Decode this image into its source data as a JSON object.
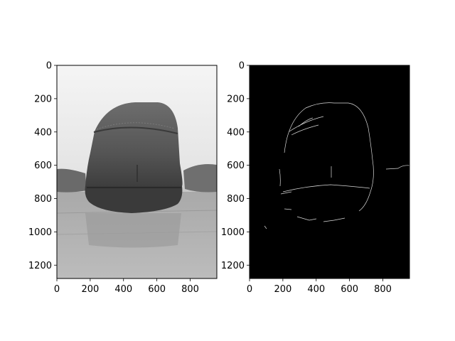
{
  "chart_data": [
    {
      "type": "image",
      "panel": "left",
      "content": "grayscale photograph of a shoe",
      "colormap": "gray",
      "xlim": [
        0,
        960
      ],
      "ylim": [
        1280,
        0
      ],
      "x_ticks": [
        0,
        200,
        400,
        600,
        800
      ],
      "y_ticks": [
        0,
        200,
        400,
        600,
        800,
        1000,
        1200
      ],
      "title": "",
      "xlabel": "",
      "ylabel": ""
    },
    {
      "type": "image",
      "panel": "right",
      "content": "edge-detection map of the same shoe (white edges on black)",
      "colormap": "gray",
      "xlim": [
        0,
        960
      ],
      "ylim": [
        1280,
        0
      ],
      "x_ticks": [
        0,
        200,
        400,
        600,
        800
      ],
      "y_ticks": [
        0,
        200,
        400,
        600,
        800,
        1000,
        1200
      ],
      "title": "",
      "xlabel": "",
      "ylabel": ""
    }
  ]
}
